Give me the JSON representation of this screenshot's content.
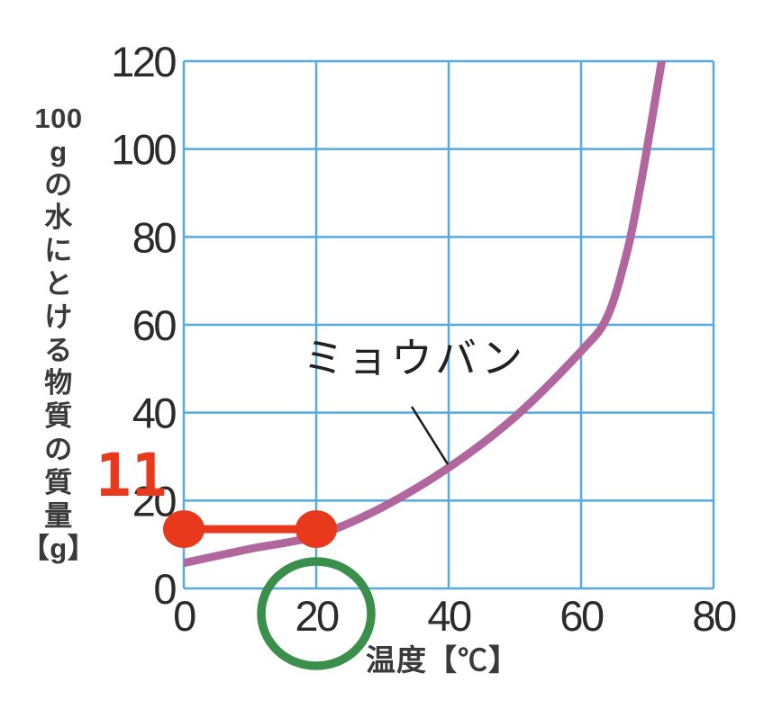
{
  "chart_data": {
    "type": "line",
    "title": "",
    "xlabel": "温度【℃】",
    "ylabel": "100gの水にとける物質の質量【g】",
    "ylabel_segments": [
      "100",
      "g",
      "の",
      "水",
      "に",
      "と",
      "け",
      "る",
      "物",
      "質",
      "の",
      "質",
      "量",
      "【g】"
    ],
    "xlim": [
      0,
      80
    ],
    "ylim": [
      0,
      120
    ],
    "x_ticks": [
      0,
      20,
      40,
      60,
      80
    ],
    "y_ticks": [
      0,
      20,
      40,
      60,
      80,
      100,
      120
    ],
    "grid": true,
    "legend_position": "inline-label",
    "series": [
      {
        "name": "ミョウバン",
        "x": [
          0,
          10,
          20,
          30,
          40,
          50,
          60,
          64,
          67,
          69,
          70.5,
          72.5
        ],
        "y": [
          5.8,
          9,
          12,
          18.5,
          27.5,
          39,
          54,
          62,
          77,
          92,
          105,
          123
        ]
      }
    ],
    "colors": {
      "grid": "#55aae1",
      "curve": "#b1679e",
      "highlight": "#e8391d",
      "circle": "#3a8f4a",
      "tick_text": "#2b2b2b",
      "axis_label_text": "#3a3a3a",
      "series_label_text": "#222222",
      "pointer": "#1a1a1a"
    }
  },
  "annotations": {
    "series_label": {
      "text": "ミョウバン"
    },
    "highlight": {
      "label": "11",
      "x_start": 0,
      "x_end": 20,
      "y": 13.5
    },
    "circled_tick": {
      "value": 20
    }
  }
}
